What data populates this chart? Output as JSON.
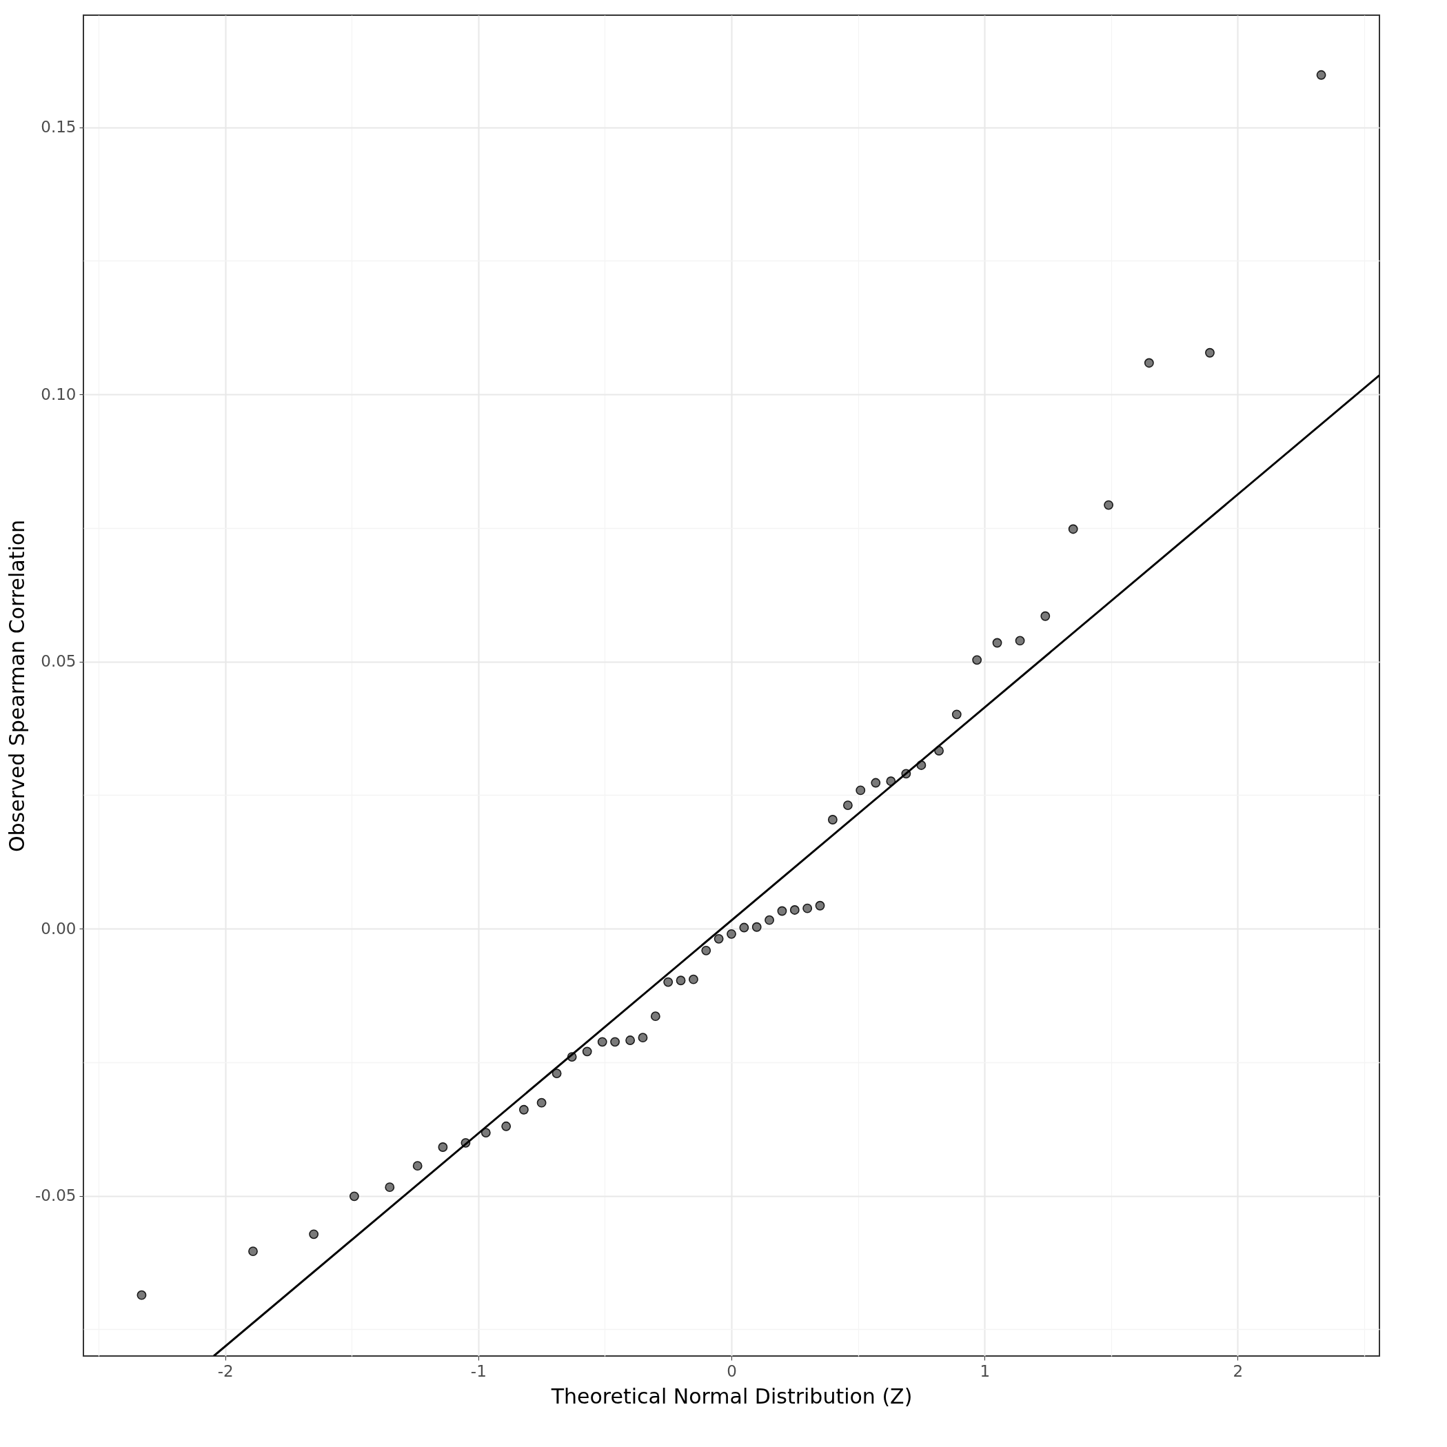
{
  "chart_data": {
    "type": "scatter",
    "xlabel": "Theoretical Normal Distribution (Z)",
    "ylabel": "Observed Spearman Correlation",
    "x": [
      -2.33,
      -1.89,
      -1.65,
      -1.49,
      -1.35,
      -1.24,
      -1.14,
      -1.05,
      -0.97,
      -0.89,
      -0.82,
      -0.75,
      -0.69,
      -0.63,
      -0.57,
      -0.51,
      -0.46,
      -0.4,
      -0.35,
      -0.3,
      -0.25,
      -0.2,
      -0.15,
      -0.1,
      -0.05,
      0,
      0.05,
      0.1,
      0.15,
      0.2,
      0.25,
      0.3,
      0.35,
      0.4,
      0.46,
      0.51,
      0.57,
      0.63,
      0.69,
      0.75,
      0.82,
      0.89,
      0.97,
      1.05,
      1.14,
      1.24,
      1.35,
      1.49,
      1.65,
      1.89,
      2.33
    ],
    "series": [
      {
        "marker": "circle",
        "color": "#6b6b6b",
        "values": [
          -0.0686,
          -0.0604,
          -0.0572,
          -0.0501,
          -0.0484,
          -0.0444,
          -0.0409,
          -0.0401,
          -0.0382,
          -0.037,
          -0.0339,
          -0.0326,
          -0.0271,
          -0.024,
          -0.023,
          -0.0212,
          -0.0212,
          -0.0209,
          -0.0204,
          -0.0164,
          -0.01,
          -0.0097,
          -0.0095,
          -0.0041,
          -0.0019,
          -0.001,
          0.0002,
          0.0003,
          0.0016,
          0.0033,
          0.0035,
          0.0038,
          0.0043,
          0.0204,
          0.0231,
          0.0259,
          0.0273,
          0.0276,
          0.029,
          0.0306,
          0.0333,
          0.0401,
          0.0503,
          0.0535,
          0.0539,
          0.0585,
          0.0748,
          0.0793,
          0.1059,
          0.1078,
          0.1598
        ]
      },
      {
        "type": "line",
        "marker": "none",
        "color": "#000000",
        "x": [
          -2.045,
          2.56
        ],
        "values": [
          -0.08,
          0.1036
        ]
      }
    ],
    "xlim": [
      -2.56,
      2.56
    ],
    "ylim": [
      -0.08,
      0.171
    ],
    "xticks": [
      {
        "value": -2.5,
        "label": null
      },
      -2,
      {
        "value": -1.5,
        "label": null
      },
      -1,
      {
        "value": -0.5,
        "label": null
      },
      0,
      {
        "value": 0.5,
        "label": null
      },
      1,
      {
        "value": 1.5,
        "label": null
      },
      2,
      {
        "value": 2.5,
        "label": null
      }
    ],
    "yticks": [
      {
        "value": -0.075,
        "label": null
      },
      {
        "value": -0.05,
        "label": "-0.05"
      },
      {
        "value": -0.025,
        "label": null
      },
      {
        "value": 0,
        "label": "0.00"
      },
      {
        "value": 0.025,
        "label": null
      },
      {
        "value": 0.05,
        "label": "0.05"
      },
      {
        "value": 0.075,
        "label": null
      },
      {
        "value": 0.1,
        "label": "0.10"
      },
      {
        "value": 0.125,
        "label": null
      },
      {
        "value": 0.15,
        "label": "0.15"
      }
    ],
    "grid": true
  }
}
